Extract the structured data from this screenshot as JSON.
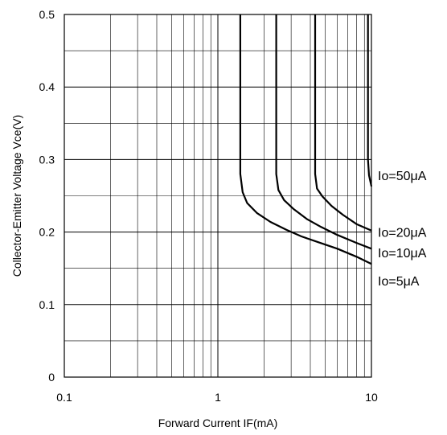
{
  "chart_data": {
    "type": "line",
    "xlabel": "Forward Current IF(mA)",
    "ylabel": "Collector-Emitter Voltage Vce(V)",
    "xscale": "log",
    "xlim": [
      0.1,
      10
    ],
    "ylim": [
      0,
      0.5
    ],
    "grid": true,
    "x_ticks": [
      {
        "value": 0.1,
        "label": "0.1"
      },
      {
        "value": 1,
        "label": "1"
      },
      {
        "value": 10,
        "label": "10"
      }
    ],
    "y_ticks": [
      {
        "value": 0,
        "label": "0"
      },
      {
        "value": 0.1,
        "label": "0.1"
      },
      {
        "value": 0.2,
        "label": "0.2"
      },
      {
        "value": 0.3,
        "label": "0.3"
      },
      {
        "value": 0.4,
        "label": "0.4"
      },
      {
        "value": 0.5,
        "label": "0.5"
      }
    ],
    "series": [
      {
        "name": "Io=5μA",
        "points": [
          [
            1.4,
            0.5
          ],
          [
            1.4,
            0.28
          ],
          [
            1.45,
            0.255
          ],
          [
            1.55,
            0.24
          ],
          [
            1.8,
            0.226
          ],
          [
            2.2,
            0.214
          ],
          [
            2.8,
            0.203
          ],
          [
            3.5,
            0.194
          ],
          [
            4.5,
            0.186
          ],
          [
            6,
            0.177
          ],
          [
            8,
            0.166
          ],
          [
            10,
            0.156
          ]
        ]
      },
      {
        "name": "Io=10μA",
        "points": [
          [
            2.4,
            0.5
          ],
          [
            2.4,
            0.28
          ],
          [
            2.48,
            0.258
          ],
          [
            2.7,
            0.244
          ],
          [
            3.1,
            0.232
          ],
          [
            3.8,
            0.218
          ],
          [
            4.7,
            0.207
          ],
          [
            6,
            0.196
          ],
          [
            8,
            0.185
          ],
          [
            10,
            0.177
          ]
        ]
      },
      {
        "name": "Io=20μA",
        "points": [
          [
            4.3,
            0.5
          ],
          [
            4.3,
            0.28
          ],
          [
            4.42,
            0.26
          ],
          [
            4.8,
            0.249
          ],
          [
            5.5,
            0.236
          ],
          [
            6.5,
            0.224
          ],
          [
            8,
            0.211
          ],
          [
            10,
            0.202
          ]
        ]
      },
      {
        "name": "Io=50μA",
        "points": [
          [
            9.5,
            0.5
          ],
          [
            9.5,
            0.3
          ],
          [
            9.65,
            0.278
          ],
          [
            10,
            0.263
          ]
        ]
      }
    ],
    "label_positions_v": [
      0.278,
      0.2,
      0.172,
      0.133
    ]
  }
}
